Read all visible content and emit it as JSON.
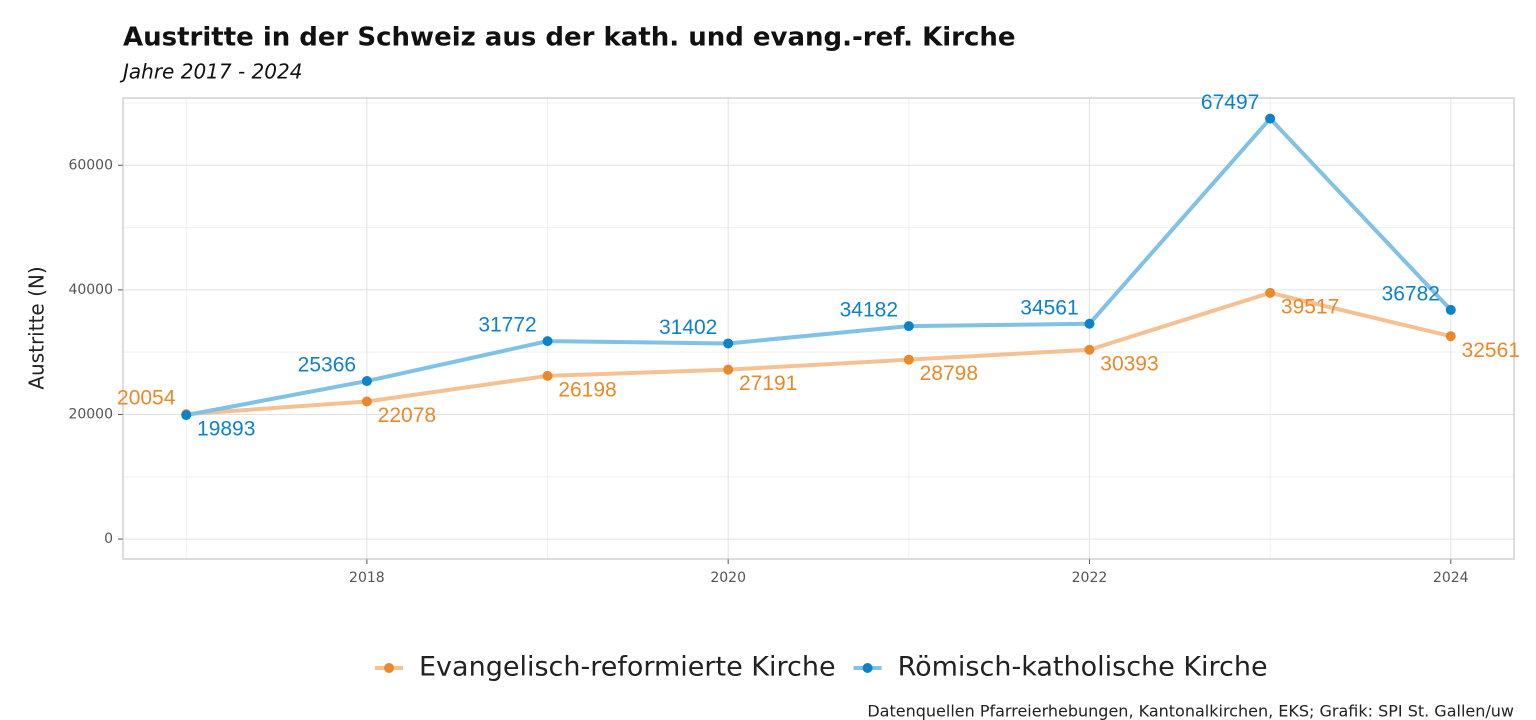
{
  "chart_data": {
    "type": "line",
    "title": "Austritte in der Schweiz aus der kath. und evang.-ref. Kirche",
    "subtitle": "Jahre 2017 - 2024",
    "y_label": "Austritte (N)",
    "caption": "Datenquellen Pfarreierhebungen, Kantonalkirchen, EKS; Grafik: SPI St. Gallen/uw",
    "x": [
      2017,
      2018,
      2019,
      2020,
      2021,
      2022,
      2023,
      2024
    ],
    "xlim": [
      2016.65,
      2024.35
    ],
    "xticks": [
      2018,
      2020,
      2022,
      2024
    ],
    "ylim": [
      -3200,
      70800
    ],
    "yticks": [
      0,
      20000,
      40000,
      60000
    ],
    "grid": true,
    "legend": "bottom",
    "series": [
      {
        "name": "Evangelisch-reformierte Kirche",
        "color": "#e8892b",
        "line_color": "#f5c193",
        "values": [
          20054,
          22078,
          26198,
          27191,
          28798,
          30393,
          39517,
          32561
        ]
      },
      {
        "name": "Römisch-katholische Kirche",
        "color": "#0d82c8",
        "line_color": "#80c1e6",
        "values": [
          19893,
          25366,
          31772,
          31402,
          34182,
          34561,
          67497,
          36782
        ]
      }
    ]
  }
}
